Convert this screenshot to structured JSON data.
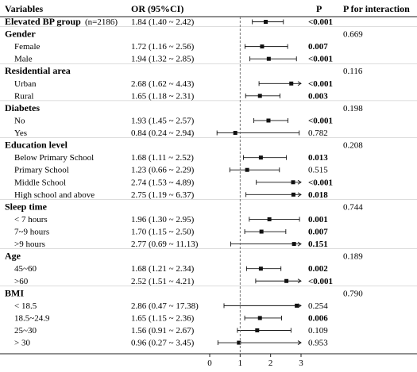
{
  "chart_data": {
    "type": "forest",
    "headers": {
      "variables": "Variables",
      "or": "OR (95%CI)",
      "p": "P",
      "p_interaction": "P for interaction"
    },
    "x_ticks": [
      "0",
      "1",
      "2",
      "3"
    ],
    "xlim": [
      0,
      3
    ],
    "reference_line": 1,
    "overall": {
      "label": "Elevated BP group",
      "n": "(n=2186)",
      "or_text": "1.84 (1.40 ~ 2.42)",
      "p": "<0.001",
      "p_bold": true,
      "or": 1.84,
      "lo": 1.4,
      "hi": 2.42
    },
    "groups": [
      {
        "name": "Gender",
        "p_interaction": "0.669",
        "rows": [
          {
            "label": "Female",
            "or_text": "1.72 (1.16 ~ 2.56)",
            "p": "0.007",
            "p_bold": true,
            "or": 1.72,
            "lo": 1.16,
            "hi": 2.56
          },
          {
            "label": "Male",
            "or_text": "1.94 (1.32 ~ 2.85)",
            "p": "<0.001",
            "p_bold": true,
            "or": 1.94,
            "lo": 1.32,
            "hi": 2.85
          }
        ]
      },
      {
        "name": "Residential area",
        "p_interaction": "0.116",
        "rows": [
          {
            "label": "Urban",
            "or_text": "2.68 (1.62 ~ 4.43)",
            "p": "<0.001",
            "p_bold": true,
            "or": 2.68,
            "lo": 1.62,
            "hi": 4.43
          },
          {
            "label": "Rural",
            "or_text": "1.65 (1.18 ~ 2.31)",
            "p": "0.003",
            "p_bold": true,
            "or": 1.65,
            "lo": 1.18,
            "hi": 2.31
          }
        ]
      },
      {
        "name": "Diabetes",
        "p_interaction": "0.198",
        "rows": [
          {
            "label": "No",
            "or_text": "1.93 (1.45 ~ 2.57)",
            "p": "<0.001",
            "p_bold": true,
            "or": 1.93,
            "lo": 1.45,
            "hi": 2.57
          },
          {
            "label": "Yes",
            "or_text": "0.84 (0.24 ~ 2.94)",
            "p": "0.782",
            "p_bold": false,
            "or": 0.84,
            "lo": 0.24,
            "hi": 2.94
          }
        ]
      },
      {
        "name": "Education level",
        "p_interaction": "0.208",
        "rows": [
          {
            "label": "Below Primary School",
            "or_text": "1.68 (1.11 ~ 2.52)",
            "p": "0.013",
            "p_bold": true,
            "or": 1.68,
            "lo": 1.11,
            "hi": 2.52
          },
          {
            "label": "Primary School",
            "or_text": "1.23 (0.66 ~ 2.29)",
            "p": "0.515",
            "p_bold": false,
            "or": 1.23,
            "lo": 0.66,
            "hi": 2.29
          },
          {
            "label": "Middle School",
            "or_text": "2.74 (1.53 ~ 4.89)",
            "p": "<0.001",
            "p_bold": true,
            "or": 2.74,
            "lo": 1.53,
            "hi": 4.89
          },
          {
            "label": "High school and above",
            "or_text": "2.75 (1.19 ~ 6.37)",
            "p": "0.018",
            "p_bold": true,
            "or": 2.75,
            "lo": 1.19,
            "hi": 6.37
          }
        ]
      },
      {
        "name": "Sleep time",
        "p_interaction": "0.744",
        "rows": [
          {
            "label": "< 7 hours",
            "or_text": "1.96 (1.30 ~ 2.95)",
            "p": "0.001",
            "p_bold": true,
            "or": 1.96,
            "lo": 1.3,
            "hi": 2.95
          },
          {
            "label": "7~9 hours",
            "or_text": "1.70 (1.15 ~ 2.50)",
            "p": "0.007",
            "p_bold": true,
            "or": 1.7,
            "lo": 1.15,
            "hi": 2.5
          },
          {
            "label": ">9 hours",
            "or_text": "2.77 (0.69 ~ 11.13)",
            "p": "0.151",
            "p_bold": true,
            "or": 2.77,
            "lo": 0.69,
            "hi": 11.13
          }
        ]
      },
      {
        "name": "Age",
        "p_interaction": "0.189",
        "rows": [
          {
            "label": "45~60",
            "or_text": "1.68 (1.21 ~ 2.34)",
            "p": "0.002",
            "p_bold": true,
            "or": 1.68,
            "lo": 1.21,
            "hi": 2.34
          },
          {
            "label": ">60",
            "or_text": "2.52 (1.51 ~ 4.21)",
            "p": "<0.001",
            "p_bold": true,
            "or": 2.52,
            "lo": 1.51,
            "hi": 4.21
          }
        ]
      },
      {
        "name": "BMI",
        "p_interaction": "0.790",
        "rows": [
          {
            "label": "< 18.5",
            "or_text": "2.86 (0.47 ~ 17.38)",
            "p": "0.254",
            "p_bold": false,
            "or": 2.86,
            "lo": 0.47,
            "hi": 17.38
          },
          {
            "label": "18.5~24.9",
            "or_text": "1.65 (1.15 ~ 2.36)",
            "p": "0.006",
            "p_bold": true,
            "or": 1.65,
            "lo": 1.15,
            "hi": 2.36
          },
          {
            "label": "25~30",
            "or_text": "1.56 (0.91 ~ 2.67)",
            "p": "0.109",
            "p_bold": false,
            "or": 1.56,
            "lo": 0.91,
            "hi": 2.67
          },
          {
            "label": "> 30",
            "or_text": "0.96 (0.27 ~ 3.45)",
            "p": "0.953",
            "p_bold": false,
            "or": 0.96,
            "lo": 0.27,
            "hi": 3.45
          }
        ]
      }
    ]
  }
}
